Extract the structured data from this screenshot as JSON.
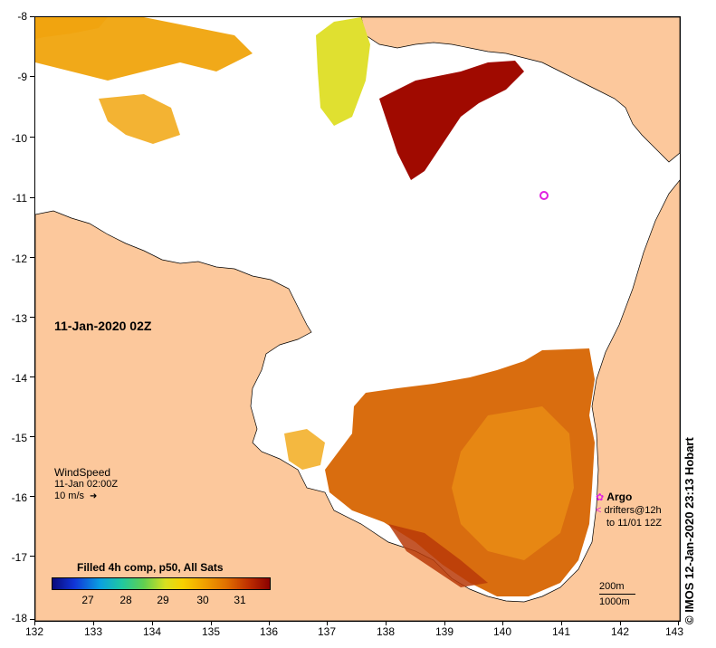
{
  "map": {
    "date_label": "11-Jan-2020 02Z",
    "x_ticks": [
      "132",
      "133",
      "134",
      "135",
      "136",
      "137",
      "138",
      "139",
      "140",
      "141",
      "142",
      "143"
    ],
    "y_ticks": [
      "-8",
      "-9",
      "-10",
      "-11",
      "-12",
      "-13",
      "-14",
      "-15",
      "-16",
      "-17",
      "-18"
    ],
    "colors": {
      "land": "#fcc89c",
      "sea_nodata": "#ffffff",
      "coast": "#000000"
    }
  },
  "wind": {
    "title": "WindSpeed",
    "time": "11-Jan 02:00Z",
    "scale": "10 m/s"
  },
  "colorbar": {
    "title": "Filled 4h comp, p50, All Sats",
    "ticks": [
      "27",
      "28",
      "29",
      "30",
      "31"
    ]
  },
  "argo": {
    "title": "Argo",
    "drifters_line1": "drifters@12h",
    "drifters_line2": "to 11/01 12Z"
  },
  "depth": {
    "contour1": "200m",
    "contour2": "1000m"
  },
  "credit": "© IMOS 12-Jan-2020 23:13 Hobart"
}
